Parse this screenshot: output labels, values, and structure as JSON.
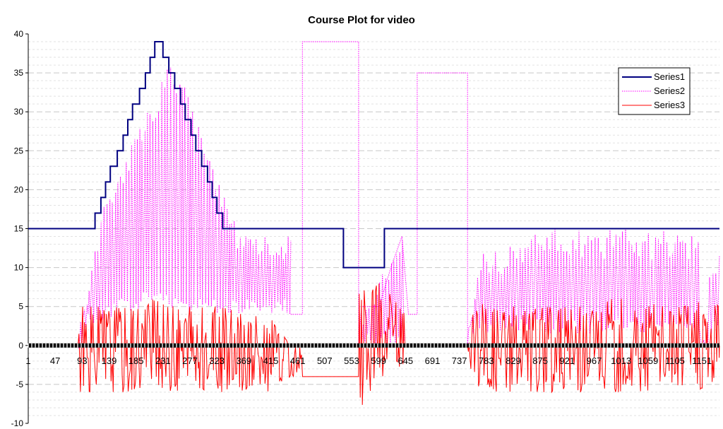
{
  "chart_data": {
    "type": "line",
    "title": "Course Plot for video",
    "xlabel": "",
    "ylabel": "",
    "xlim": [
      1,
      1181
    ],
    "ylim": [
      -10,
      40
    ],
    "y_ticks": [
      -10,
      -5,
      0,
      5,
      10,
      15,
      20,
      25,
      30,
      35,
      40
    ],
    "x_tick_labels": [
      "1",
      "47",
      "93",
      "139",
      "185",
      "231",
      "277",
      "323",
      "369",
      "415",
      "461",
      "507",
      "553",
      "599",
      "645",
      "691",
      "737",
      "783",
      "829",
      "875",
      "921",
      "967",
      "1013",
      "1059",
      "1105",
      "1151"
    ],
    "grid": "horizontal-dashed",
    "legend_position": "top-right",
    "colors": {
      "Series1": "#000080",
      "Series2": "#ff00ff",
      "Series3": "#ff0000",
      "zero_band": "#000000"
    },
    "series": [
      {
        "name": "Series1",
        "style": "solid",
        "points": [
          [
            1,
            15
          ],
          [
            115,
            15
          ],
          [
            115,
            17
          ],
          [
            125,
            17
          ],
          [
            125,
            19
          ],
          [
            133,
            19
          ],
          [
            133,
            21
          ],
          [
            141,
            21
          ],
          [
            141,
            23
          ],
          [
            153,
            23
          ],
          [
            153,
            25
          ],
          [
            163,
            25
          ],
          [
            163,
            27
          ],
          [
            171,
            27
          ],
          [
            171,
            29
          ],
          [
            179,
            29
          ],
          [
            179,
            31
          ],
          [
            191,
            31
          ],
          [
            191,
            33
          ],
          [
            201,
            33
          ],
          [
            201,
            35
          ],
          [
            209,
            35
          ],
          [
            209,
            37
          ],
          [
            217,
            37
          ],
          [
            217,
            39
          ],
          [
            231,
            39
          ],
          [
            231,
            37
          ],
          [
            241,
            37
          ],
          [
            241,
            35
          ],
          [
            251,
            35
          ],
          [
            251,
            33
          ],
          [
            261,
            33
          ],
          [
            261,
            31
          ],
          [
            269,
            31
          ],
          [
            269,
            29
          ],
          [
            279,
            29
          ],
          [
            279,
            27
          ],
          [
            287,
            27
          ],
          [
            287,
            25
          ],
          [
            297,
            25
          ],
          [
            297,
            23
          ],
          [
            307,
            23
          ],
          [
            307,
            21
          ],
          [
            315,
            21
          ],
          [
            315,
            19
          ],
          [
            323,
            19
          ],
          [
            323,
            17
          ],
          [
            333,
            17
          ],
          [
            333,
            15
          ],
          [
            539,
            15
          ],
          [
            539,
            10
          ],
          [
            609,
            10
          ],
          [
            609,
            15
          ],
          [
            1181,
            15
          ]
        ]
      },
      {
        "name": "Series2",
        "style": "dotted",
        "shape": "oscillating",
        "envelope": [
          [
            86,
            0
          ],
          [
            90,
            2
          ],
          [
            100,
            6
          ],
          [
            115,
            13
          ],
          [
            125,
            17
          ],
          [
            140,
            20
          ],
          [
            160,
            23
          ],
          [
            185,
            27
          ],
          [
            210,
            31
          ],
          [
            225,
            33
          ],
          [
            240,
            37
          ],
          [
            250,
            35
          ],
          [
            270,
            33
          ],
          [
            290,
            29
          ],
          [
            310,
            25
          ],
          [
            330,
            21
          ],
          [
            345,
            17
          ],
          [
            360,
            15
          ],
          [
            410,
            14
          ],
          [
            449,
            14
          ]
        ],
        "baseline": [
          [
            86,
            0
          ],
          [
            90,
            2
          ],
          [
            100,
            2
          ],
          [
            130,
            3
          ],
          [
            160,
            4
          ],
          [
            200,
            5
          ],
          [
            240,
            5
          ],
          [
            280,
            4
          ],
          [
            320,
            4
          ],
          [
            360,
            4
          ],
          [
            410,
            4
          ],
          [
            449,
            4
          ]
        ],
        "segments": [
          [
            [
              449,
              4
            ],
            [
              469,
              4
            ],
            [
              469,
              39
            ],
            [
              565,
              39
            ],
            [
              565,
              0
            ]
          ],
          [
            [
              565,
              0
            ],
            [
              570,
              5
            ],
            [
              590,
              5
            ],
            [
              600,
              5
            ],
            [
              620,
              10
            ],
            [
              639,
              14
            ],
            [
              650,
              4
            ],
            [
              665,
              4
            ],
            [
              665,
              35
            ],
            [
              751,
              35
            ],
            [
              751,
              0
            ]
          ],
          [
            [
              751,
              0
            ],
            [
              758,
              5
            ],
            [
              770,
              13
            ],
            [
              800,
              13
            ],
            [
              850,
              14
            ],
            [
              900,
              15
            ],
            [
              950,
              15
            ],
            [
              1000,
              15
            ],
            [
              1050,
              15
            ],
            [
              1100,
              15
            ],
            [
              1140,
              15
            ],
            [
              1155,
              12
            ],
            [
              1160,
              0
            ],
            [
              1170,
              9
            ],
            [
              1181,
              12
            ]
          ]
        ],
        "tail_envelope": [
          [
            758,
            6
          ],
          [
            770,
            13
          ],
          [
            800,
            13
          ],
          [
            850,
            14
          ],
          [
            900,
            15
          ],
          [
            950,
            15
          ],
          [
            1000,
            15
          ],
          [
            1050,
            15
          ],
          [
            1100,
            15
          ],
          [
            1140,
            15
          ]
        ],
        "tail_baseline": [
          [
            758,
            2
          ],
          [
            800,
            2
          ],
          [
            850,
            2
          ],
          [
            900,
            2
          ],
          [
            950,
            2
          ],
          [
            1000,
            2
          ],
          [
            1050,
            2
          ],
          [
            1100,
            2
          ],
          [
            1140,
            2
          ]
        ]
      },
      {
        "name": "Series3",
        "style": "solid",
        "shape": "noisy",
        "range_samples": [
          [
            90,
            -6,
            5
          ],
          [
            130,
            -6,
            5
          ],
          [
            170,
            -6,
            5
          ],
          [
            210,
            -5,
            6
          ],
          [
            250,
            -6,
            5
          ],
          [
            290,
            -6,
            5
          ],
          [
            330,
            -6,
            5
          ],
          [
            370,
            -6,
            4
          ],
          [
            410,
            -6,
            4
          ],
          [
            449,
            -4,
            0
          ],
          [
            469,
            -4,
            -4
          ],
          [
            565,
            -8,
            7
          ],
          [
            600,
            -6,
            8
          ],
          [
            639,
            -3,
            5
          ],
          [
            665,
            1,
            1
          ],
          [
            751,
            0,
            0
          ],
          [
            760,
            -5,
            6
          ],
          [
            800,
            -6,
            5
          ],
          [
            850,
            -6,
            5
          ],
          [
            900,
            -6,
            5
          ],
          [
            950,
            -6,
            5
          ],
          [
            1000,
            -6,
            6
          ],
          [
            1050,
            -6,
            6
          ],
          [
            1100,
            -5,
            5
          ],
          [
            1181,
            -6,
            6
          ]
        ]
      }
    ]
  }
}
